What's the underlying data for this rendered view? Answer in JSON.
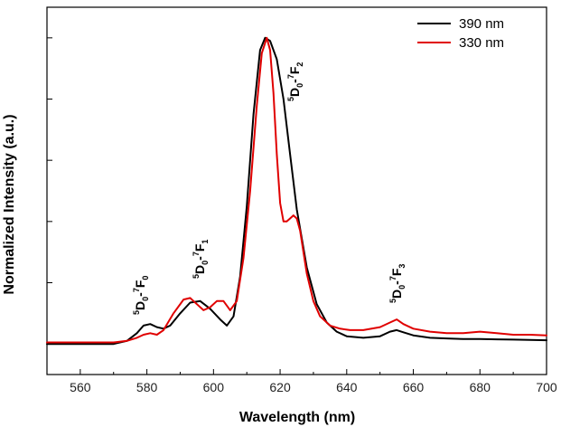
{
  "chart_data": {
    "type": "line",
    "title": "",
    "xlabel": "Wavelength (nm)",
    "ylabel": "Normalized Intensity (a.u.)",
    "xlim": [
      550,
      700
    ],
    "ylim": [
      -0.1,
      1.1
    ],
    "xticks": [
      560,
      580,
      600,
      620,
      640,
      660,
      680,
      700
    ],
    "xtick_labels": [
      "560",
      "580",
      "600",
      "620",
      "640",
      "660",
      "680",
      "700"
    ],
    "yticks_count": 6,
    "grid": false,
    "legend_position": "top-right",
    "series": [
      {
        "name": "390 nm",
        "color": "#000000",
        "x": [
          550,
          560,
          570,
          574,
          577,
          579,
          581,
          583,
          585,
          587,
          590,
          593,
          596,
          599,
          602,
          604,
          606,
          608,
          610,
          612,
          614,
          615.5,
          617,
          619,
          621,
          623,
          625,
          628,
          631,
          634,
          637,
          640,
          645,
          650,
          653,
          655,
          657,
          660,
          665,
          670,
          675,
          680,
          685,
          690,
          695,
          700
        ],
        "y": [
          0.0,
          0.0,
          0.0,
          0.01,
          0.035,
          0.06,
          0.065,
          0.055,
          0.05,
          0.06,
          0.1,
          0.135,
          0.14,
          0.115,
          0.08,
          0.06,
          0.09,
          0.22,
          0.45,
          0.75,
          0.96,
          1.0,
          0.99,
          0.93,
          0.8,
          0.62,
          0.44,
          0.25,
          0.13,
          0.07,
          0.04,
          0.025,
          0.02,
          0.025,
          0.04,
          0.045,
          0.038,
          0.028,
          0.02,
          0.018,
          0.016,
          0.016,
          0.015,
          0.014,
          0.013,
          0.012
        ]
      },
      {
        "name": "330 nm",
        "color": "#e00000",
        "x": [
          550,
          560,
          570,
          574,
          577,
          579,
          581,
          583,
          585,
          588,
          591,
          593,
          595,
          597,
          599,
          601,
          603,
          605,
          607,
          609,
          611,
          613,
          614.5,
          616,
          617,
          618,
          619,
          620,
          621,
          622,
          623,
          624,
          625,
          626,
          627,
          628,
          630,
          632,
          635,
          638,
          641,
          645,
          650,
          653,
          655,
          657,
          660,
          665,
          670,
          675,
          680,
          685,
          690,
          695,
          700
        ],
        "y": [
          0.005,
          0.005,
          0.005,
          0.01,
          0.02,
          0.03,
          0.035,
          0.03,
          0.045,
          0.1,
          0.145,
          0.15,
          0.13,
          0.11,
          0.12,
          0.14,
          0.14,
          0.11,
          0.14,
          0.28,
          0.5,
          0.78,
          0.95,
          1.0,
          0.96,
          0.82,
          0.62,
          0.46,
          0.4,
          0.4,
          0.41,
          0.42,
          0.41,
          0.37,
          0.3,
          0.23,
          0.14,
          0.09,
          0.06,
          0.05,
          0.045,
          0.045,
          0.055,
          0.07,
          0.08,
          0.065,
          0.05,
          0.04,
          0.035,
          0.035,
          0.04,
          0.035,
          0.03,
          0.03,
          0.028
        ]
      }
    ],
    "annotations": [
      {
        "lower_left": "5",
        "main1": "D",
        "sub": "0",
        "sep": "-",
        "upper": "7",
        "main2": "F",
        "sub2": "0"
      },
      {
        "lower_left": "5",
        "main1": "D",
        "sub": "0",
        "sep": "-",
        "upper": "7",
        "main2": "F",
        "sub2": "1"
      },
      {
        "lower_left": "5",
        "main1": "D",
        "sub": "0",
        "sep": "-",
        "upper": "7",
        "main2": "F",
        "sub2": "2"
      },
      {
        "lower_left": "5",
        "main1": "D",
        "sub": "0",
        "sep": "-",
        "upper": "7",
        "main2": "F",
        "sub2": "3"
      }
    ]
  }
}
